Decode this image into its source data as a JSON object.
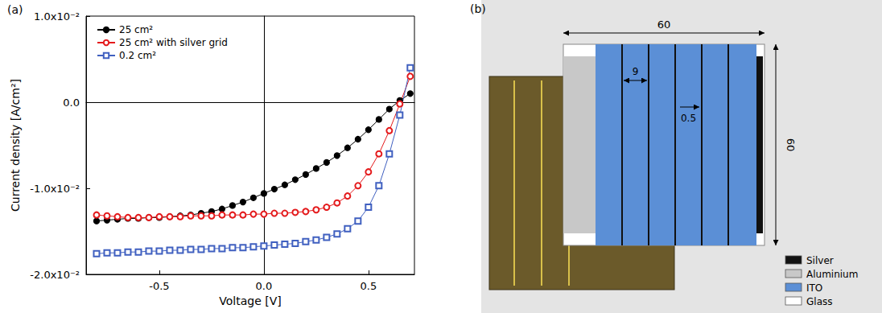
{
  "chart_data": {
    "type": "line",
    "panel_label": "(a)",
    "x_label": "Voltage [V]",
    "y_label": "Current density [A/cm²]",
    "x": [
      -0.8,
      -0.75,
      -0.7,
      -0.65,
      -0.6,
      -0.55,
      -0.5,
      -0.45,
      -0.4,
      -0.35,
      -0.3,
      -0.25,
      -0.2,
      -0.15,
      -0.1,
      -0.05,
      0.0,
      0.05,
      0.1,
      0.15,
      0.2,
      0.25,
      0.3,
      0.35,
      0.4,
      0.45,
      0.5,
      0.55,
      0.6,
      0.65,
      0.7
    ],
    "series": [
      {
        "name": "25 cm²",
        "color": "#000000",
        "marker": "circle",
        "values": [
          -0.0138,
          -0.0137,
          -0.0136,
          -0.0135,
          -0.0135,
          -0.0134,
          -0.0134,
          -0.0133,
          -0.0132,
          -0.0131,
          -0.0129,
          -0.0127,
          -0.0124,
          -0.012,
          -0.0116,
          -0.0111,
          -0.0106,
          -0.0101,
          -0.0096,
          -0.009,
          -0.0084,
          -0.0077,
          -0.007,
          -0.0062,
          -0.0053,
          -0.0043,
          -0.0032,
          -0.002,
          -0.0008,
          0.0002,
          0.001
        ]
      },
      {
        "name": "25 cm² with silver grid",
        "color": "#e41a1c",
        "marker": "open circle",
        "values": [
          -0.0131,
          -0.0132,
          -0.0133,
          -0.0134,
          -0.0134,
          -0.0134,
          -0.0133,
          -0.0133,
          -0.0133,
          -0.0132,
          -0.0132,
          -0.0132,
          -0.0131,
          -0.0131,
          -0.0131,
          -0.013,
          -0.013,
          -0.0129,
          -0.0129,
          -0.0128,
          -0.0127,
          -0.0125,
          -0.0122,
          -0.0117,
          -0.0109,
          -0.0097,
          -0.0081,
          -0.006,
          -0.0033,
          -0.0002,
          0.003
        ]
      },
      {
        "name": "0.2 cm²",
        "color": "#4060c0",
        "marker": "open square",
        "values": [
          -0.0176,
          -0.0175,
          -0.0175,
          -0.0174,
          -0.0174,
          -0.0173,
          -0.0173,
          -0.0172,
          -0.0172,
          -0.0171,
          -0.0171,
          -0.017,
          -0.017,
          -0.0169,
          -0.0169,
          -0.0168,
          -0.0167,
          -0.0166,
          -0.0165,
          -0.0164,
          -0.0162,
          -0.016,
          -0.0157,
          -0.0153,
          -0.0147,
          -0.0138,
          -0.0122,
          -0.0097,
          -0.006,
          -0.0015,
          0.004
        ]
      }
    ],
    "xlim": [
      -0.85,
      0.72
    ],
    "xticks": [
      -0.5,
      {
        "value": 0,
        "label": "0.0"
      },
      0.5
    ],
    "ylim": [
      -0.02,
      0.01
    ],
    "yticks": [
      {
        "value": -0.02,
        "label": "-2.0x10⁻²"
      },
      {
        "value": -0.01,
        "label": "-1.0x10⁻²"
      },
      {
        "value": 0,
        "label": "0.0"
      },
      {
        "value": 0.01,
        "label": "1.0x10⁻²"
      }
    ],
    "grid": false,
    "legend": "upper left"
  },
  "module_schematic": {
    "panel_label": "(b)",
    "dimensions": {
      "width": "60",
      "height": "60",
      "grid_spacing": "9",
      "grid_line_width": "0.5"
    },
    "legend": [
      {
        "label": "Silver",
        "color": "#111111"
      },
      {
        "label": "Aluminium",
        "color": "#c8c8c8"
      },
      {
        "label": "ITO",
        "color": "#5b8fd6"
      },
      {
        "label": "Glass",
        "color": "#ffffff"
      }
    ]
  }
}
